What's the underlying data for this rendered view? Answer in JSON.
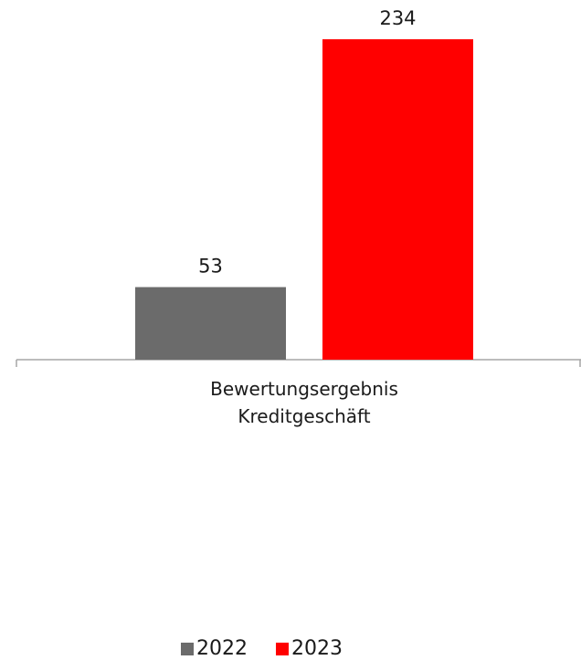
{
  "chart_data": {
    "type": "bar",
    "categories": [
      "Bewertungsergebnis Kreditgeschäft"
    ],
    "category_lines": [
      [
        "Bewertungsergebnis",
        "Kreditgeschäft"
      ]
    ],
    "series": [
      {
        "name": "2022",
        "values": [
          53
        ],
        "color": "#6b6b6b"
      },
      {
        "name": "2023",
        "values": [
          234
        ],
        "color": "#ff0000"
      }
    ],
    "data_labels": [
      "53",
      "234"
    ],
    "ylim": [
      0,
      240
    ],
    "legend_position": "bottom",
    "grid": false
  }
}
